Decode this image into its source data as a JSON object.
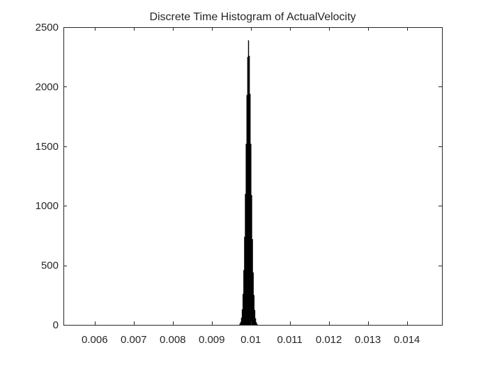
{
  "chart_data": {
    "type": "bar",
    "subtype": "histogram",
    "title": "Discrete Time Histogram of ActualVelocity",
    "xlabel": "",
    "ylabel": "",
    "xlim": [
      0.0052,
      0.0149
    ],
    "ylim": [
      0,
      2500
    ],
    "x_ticks": [
      0.006,
      0.007,
      0.008,
      0.009,
      0.01,
      0.011,
      0.012,
      0.013,
      0.014
    ],
    "x_tick_labels": [
      "0.006",
      "0.007",
      "0.008",
      "0.009",
      "0.01",
      "0.011",
      "0.012",
      "0.013",
      "0.014"
    ],
    "y_ticks": [
      0,
      500,
      1000,
      1500,
      2000,
      2500
    ],
    "y_tick_labels": [
      "0",
      "500",
      "1000",
      "1500",
      "2000",
      "2500"
    ],
    "grid": false,
    "bar_color": "#000000",
    "bins": [
      {
        "x": 0.00972,
        "count": 10
      },
      {
        "x": 0.00974,
        "count": 25
      },
      {
        "x": 0.00976,
        "count": 60
      },
      {
        "x": 0.00978,
        "count": 130
      },
      {
        "x": 0.0098,
        "count": 260
      },
      {
        "x": 0.00982,
        "count": 460
      },
      {
        "x": 0.00984,
        "count": 740
      },
      {
        "x": 0.00986,
        "count": 1100
      },
      {
        "x": 0.00988,
        "count": 1520
      },
      {
        "x": 0.0099,
        "count": 1930
      },
      {
        "x": 0.00992,
        "count": 2250
      },
      {
        "x": 0.00994,
        "count": 2390
      },
      {
        "x": 0.00996,
        "count": 2260
      },
      {
        "x": 0.00998,
        "count": 1940
      },
      {
        "x": 0.01,
        "count": 1520
      },
      {
        "x": 0.01002,
        "count": 1090
      },
      {
        "x": 0.01004,
        "count": 720
      },
      {
        "x": 0.01006,
        "count": 440
      },
      {
        "x": 0.01008,
        "count": 250
      },
      {
        "x": 0.0101,
        "count": 125
      },
      {
        "x": 0.01012,
        "count": 55
      },
      {
        "x": 0.01014,
        "count": 22
      },
      {
        "x": 0.01016,
        "count": 8
      }
    ],
    "bin_width": 2e-05
  }
}
